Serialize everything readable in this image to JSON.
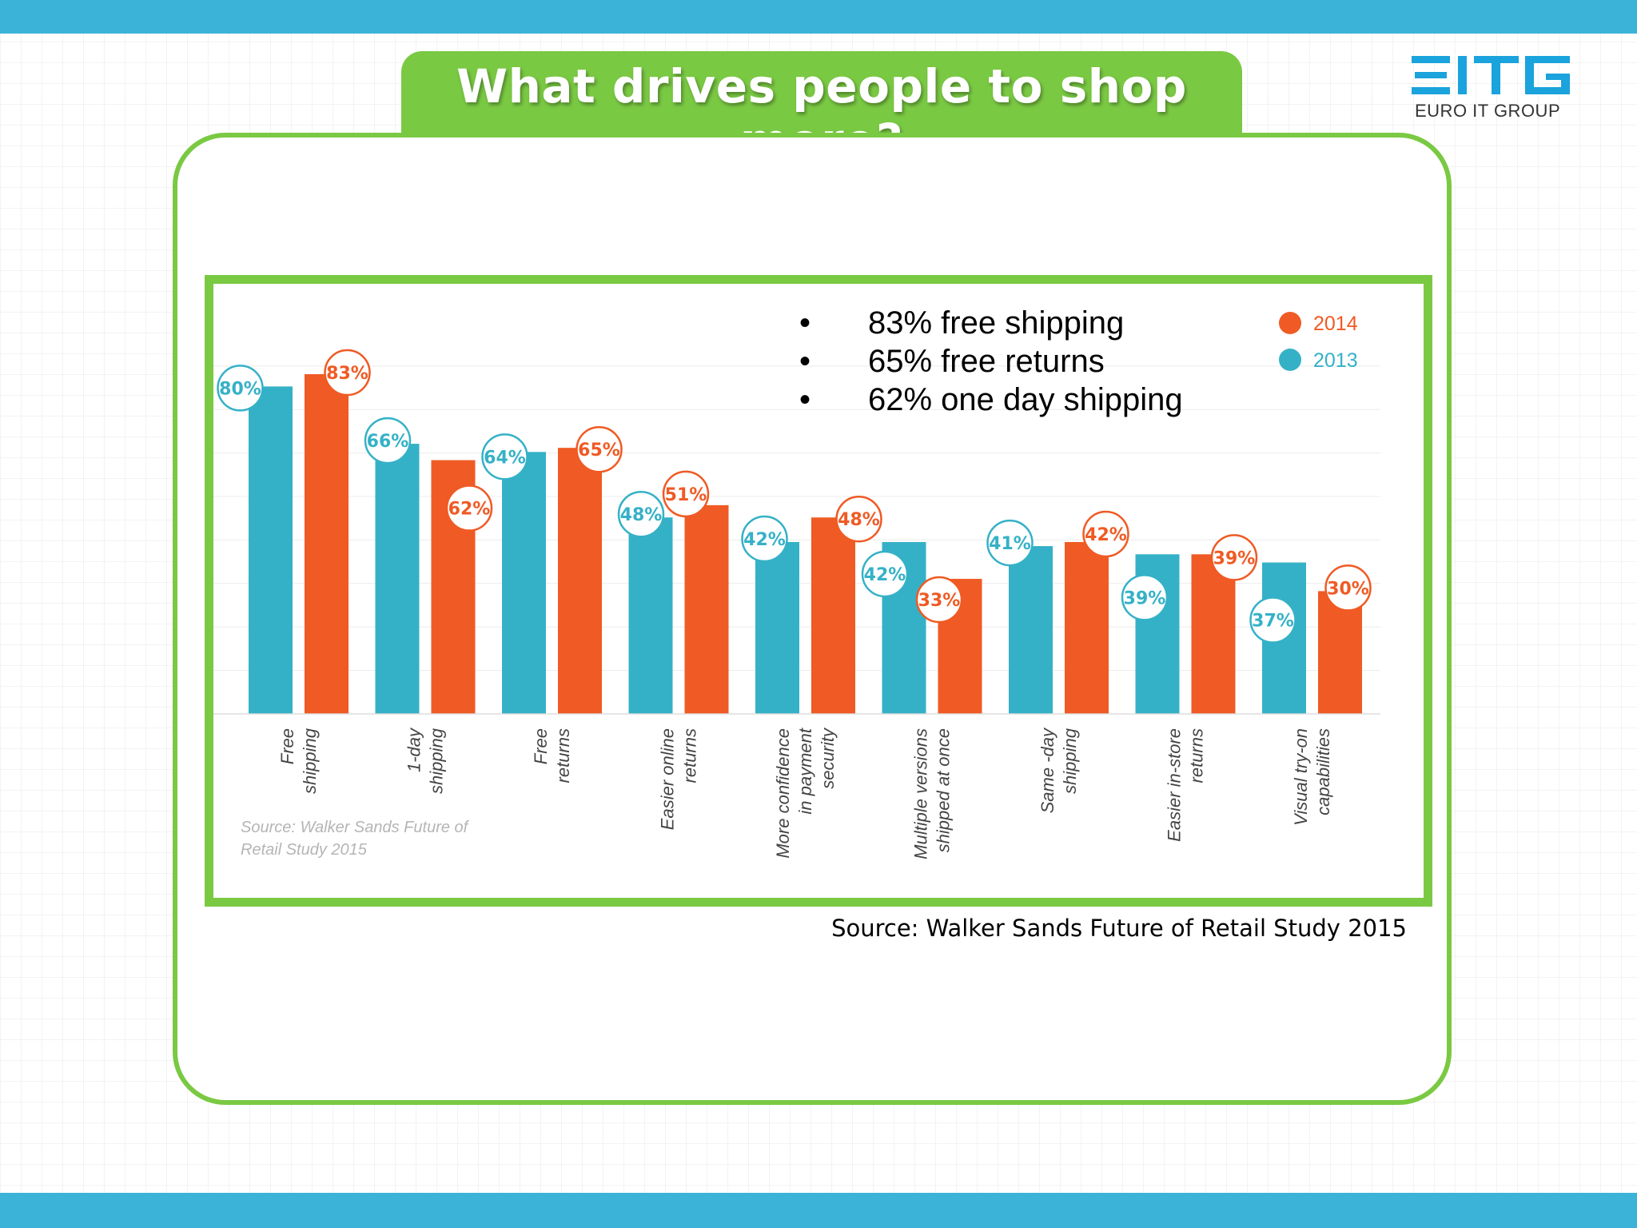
{
  "slide": {
    "title": "What drives people to shop more?",
    "source": "Source: Walker Sands Future of Retail Study 2015"
  },
  "logo": {
    "mark": "EITG",
    "text": "EURO IT GROUP",
    "color": "#1aa3dc"
  },
  "bullets": [
    {
      "dot": "•",
      "text": "83% free shipping"
    },
    {
      "dot": "•",
      "text": "65% free returns"
    },
    {
      "dot": "•",
      "text": "62% one day shipping"
    }
  ],
  "colors": {
    "bar_2013": "#35b1c7",
    "bar_2014": "#f05a24",
    "frame_green": "#7ac943",
    "bar_top": "#3bb3d8"
  },
  "chart_data": {
    "type": "bar",
    "categories": [
      [
        "Free",
        "shipping"
      ],
      [
        "1-day",
        "shipping"
      ],
      [
        "Free",
        "returns"
      ],
      [
        "Easier online",
        "returns"
      ],
      [
        "More confidence",
        "in payment",
        "security"
      ],
      [
        "Multiple versions",
        "shipped at once"
      ],
      [
        "Same -day",
        "shipping"
      ],
      [
        "Easier in-store",
        "returns"
      ],
      [
        "Visual try-on",
        "capabilities"
      ]
    ],
    "series": [
      {
        "name": "2013",
        "values": [
          80,
          66,
          64,
          48,
          42,
          42,
          41,
          39,
          37
        ]
      },
      {
        "name": "2014",
        "values": [
          83,
          62,
          65,
          51,
          48,
          33,
          42,
          39,
          30
        ]
      }
    ],
    "ylim": [
      0,
      90
    ],
    "legend": [
      "2014",
      "2013"
    ],
    "legend_position": "top-right",
    "grid": true,
    "source_note": [
      "Source: Walker Sands Future of",
      "Retail Study 2015"
    ]
  }
}
